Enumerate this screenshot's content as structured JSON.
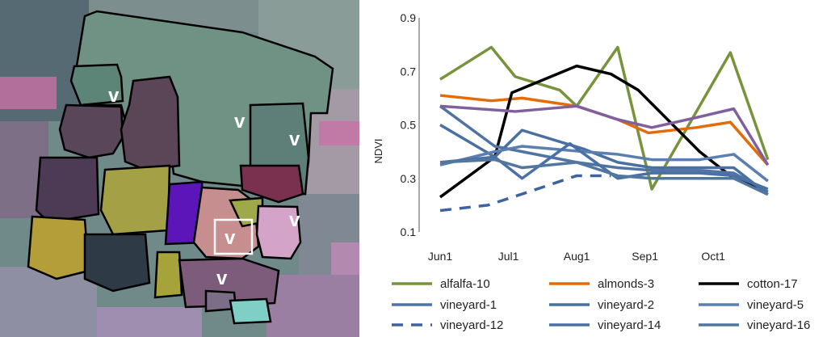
{
  "image_annotations": {
    "vineyard_marker": "v",
    "highlight_color": "#ffffff",
    "field_outline_color": "#000000"
  },
  "chart_data": {
    "type": "line",
    "ylabel": "NDVI",
    "xlabel": "",
    "ylim": [
      0.1,
      0.9
    ],
    "yticks": [
      "0.1",
      "0.3",
      "0.5",
      "0.7",
      "0.9"
    ],
    "ytick_values": [
      0.1,
      0.3,
      0.5,
      0.7,
      0.9
    ],
    "x_domain": [
      0,
      11
    ],
    "xticks": [
      {
        "label": "Jun1",
        "x": 0
      },
      {
        "label": "Jul1",
        "x": 2
      },
      {
        "label": "Aug1",
        "x": 4
      },
      {
        "label": "Sep1",
        "x": 6
      },
      {
        "label": "Oct1",
        "x": 8
      }
    ],
    "grid": false,
    "legend_position": "bottom",
    "series": [
      {
        "name": "alfalfa-10",
        "color": "#77933c",
        "dash": false,
        "x": [
          0,
          1.5,
          2.2,
          3.5,
          4,
          5.2,
          6.2,
          8.5,
          9.6
        ],
        "y": [
          0.67,
          0.79,
          0.68,
          0.63,
          0.57,
          0.79,
          0.26,
          0.77,
          0.37
        ]
      },
      {
        "name": "almonds-3",
        "color": "#e36c09",
        "dash": false,
        "x": [
          0,
          1.5,
          2.4,
          4,
          5.2,
          6.1,
          7.5,
          8.5,
          9.6
        ],
        "y": [
          0.61,
          0.59,
          0.6,
          0.57,
          0.52,
          0.47,
          0.49,
          0.51,
          0.35
        ]
      },
      {
        "name": "cotton-17",
        "color": "#000000",
        "dash": false,
        "x": [
          0,
          1.6,
          2.1,
          4,
          5,
          5.8,
          7.6,
          8.5,
          9.6
        ],
        "y": [
          0.23,
          0.38,
          0.62,
          0.72,
          0.69,
          0.63,
          0.4,
          0.31,
          0.25
        ]
      },
      {
        "name": "vineyard-1",
        "color": "#4f73a5",
        "dash": false,
        "x": [
          0,
          1.6,
          2.4,
          4,
          5.2,
          6.2,
          7.6,
          8.6,
          9.6
        ],
        "y": [
          0.57,
          0.42,
          0.4,
          0.36,
          0.34,
          0.33,
          0.33,
          0.32,
          0.25
        ]
      },
      {
        "name": "vineyard-2",
        "color": "#4a6fa1",
        "dash": false,
        "x": [
          0,
          1.6,
          2.4,
          4.2,
          5.2,
          6.2,
          7.6,
          8.6,
          9.6
        ],
        "y": [
          0.5,
          0.38,
          0.48,
          0.41,
          0.36,
          0.34,
          0.34,
          0.34,
          0.24
        ]
      },
      {
        "name": "vineyard-5",
        "color": "#5a7fb0",
        "dash": false,
        "x": [
          0,
          1.6,
          2.4,
          4.2,
          5.2,
          6.2,
          7.6,
          8.6,
          9.6
        ],
        "y": [
          0.35,
          0.4,
          0.42,
          0.4,
          0.39,
          0.37,
          0.37,
          0.39,
          0.29
        ]
      },
      {
        "name": "vineyard-12",
        "color": "#3f62a0",
        "dash": true,
        "x": [
          0,
          1.4,
          2.6,
          4,
          5
        ],
        "y": [
          0.18,
          0.2,
          0.25,
          0.31,
          0.31
        ]
      },
      {
        "name": "vineyard-14",
        "color": "#4b70a5",
        "dash": false,
        "x": [
          0,
          1.6,
          2.4,
          3.8,
          5.2,
          6.2,
          7.6,
          8.6,
          9.6
        ],
        "y": [
          0.36,
          0.38,
          0.3,
          0.43,
          0.3,
          0.32,
          0.32,
          0.31,
          0.26
        ]
      },
      {
        "name": "vineyard-16",
        "color": "#52779f",
        "dash": false,
        "x": [
          0,
          1.6,
          2.4,
          4,
          5.2,
          6.2,
          7.6,
          8.6,
          9.6
        ],
        "y": [
          0.36,
          0.37,
          0.34,
          0.36,
          0.31,
          0.3,
          0.3,
          0.3,
          0.24
        ]
      },
      {
        "name": "",
        "color": "#7f5f9c",
        "dash": false,
        "in_legend": false,
        "x": [
          0,
          2.2,
          4,
          5.2,
          6.2,
          7.6,
          8.6,
          9.6
        ],
        "y": [
          0.57,
          0.55,
          0.57,
          0.52,
          0.49,
          0.53,
          0.56,
          0.35
        ]
      }
    ]
  }
}
